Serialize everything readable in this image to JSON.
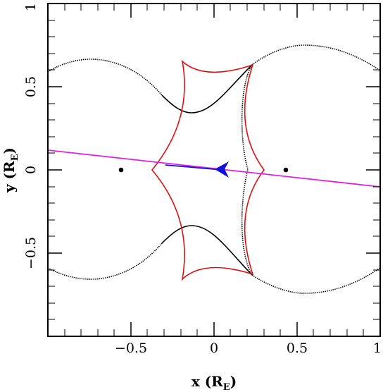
{
  "chart_data": {
    "type": "line",
    "title": "",
    "xlabel": {
      "main": "x (R",
      "sub": "E",
      "close": ")"
    },
    "ylabel": {
      "main": "y (R",
      "sub": "E",
      "close": ")"
    },
    "xlim": [
      -1,
      1
    ],
    "ylim": [
      -1,
      1
    ],
    "x_ticks": [
      -0.5,
      0,
      0.5,
      1
    ],
    "y_ticks": [
      -0.5,
      0,
      0.5,
      1
    ],
    "x_tick_labels": [
      "−0.5",
      "0",
      "0.5",
      "1"
    ],
    "y_tick_labels": [
      "−0.5",
      "0",
      "0.5",
      "1"
    ],
    "lens_positions": [
      {
        "x": -0.56,
        "y": 0.0
      },
      {
        "x": 0.44,
        "y": 0.0
      }
    ],
    "source_trajectory": {
      "color": "#e020e0",
      "points": [
        [
          -1.0,
          0.12
        ],
        [
          1.0,
          -0.1
        ]
      ]
    },
    "trajectory_segment": {
      "color": "#1010dd",
      "points": [
        [
          -0.3,
          0.03
        ],
        [
          0.05,
          0.0
        ]
      ],
      "arrow_direction": "left"
    },
    "caustic": {
      "color": "#dd1111",
      "cusps": [
        [
          0.23,
          0.63
        ],
        [
          0.3,
          0.0
        ],
        [
          0.23,
          -0.63
        ],
        [
          -0.19,
          -0.66
        ],
        [
          -0.37,
          0.0
        ],
        [
          -0.19,
          0.66
        ]
      ]
    },
    "critical_curve_color": "#000000"
  }
}
